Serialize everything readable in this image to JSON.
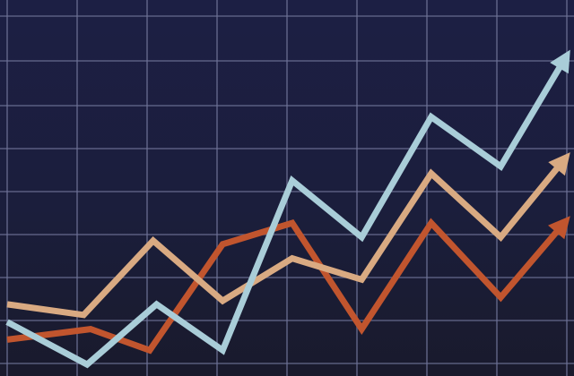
{
  "chart_data": {
    "type": "line",
    "title": "",
    "xlabel": "",
    "ylabel": "",
    "xlim": [
      0,
      8
    ],
    "ylim": [
      0,
      10
    ],
    "grid": true,
    "legend": "none",
    "background_color": "#1c1f3f",
    "grid_color": "#6f7397",
    "arrowheads": true,
    "series": [
      {
        "color": "#c1552e",
        "points": [
          [
            0,
            0.9
          ],
          [
            1.2,
            1.2
          ],
          [
            2.05,
            0.6
          ],
          [
            3.1,
            3.6
          ],
          [
            4.1,
            4.2
          ],
          [
            5.1,
            1.2
          ],
          [
            6.1,
            4.2
          ],
          [
            7.1,
            2.1
          ],
          [
            8.1,
            4.4
          ]
        ]
      },
      {
        "color": "#d9aa82",
        "points": [
          [
            0,
            1.9
          ],
          [
            1.1,
            1.6
          ],
          [
            2.1,
            3.7
          ],
          [
            3.1,
            2.0
          ],
          [
            4.1,
            3.2
          ],
          [
            5.1,
            2.6
          ],
          [
            6.1,
            5.6
          ],
          [
            7.1,
            3.8
          ],
          [
            8.1,
            6.2
          ]
        ]
      },
      {
        "color": "#a9cdd8",
        "points": [
          [
            0,
            1.4
          ],
          [
            1.15,
            0.2
          ],
          [
            2.15,
            1.9
          ],
          [
            3.1,
            0.6
          ],
          [
            4.1,
            5.4
          ],
          [
            5.1,
            3.8
          ],
          [
            6.1,
            7.2
          ],
          [
            7.1,
            5.8
          ],
          [
            8.1,
            9.1
          ]
        ]
      }
    ]
  }
}
